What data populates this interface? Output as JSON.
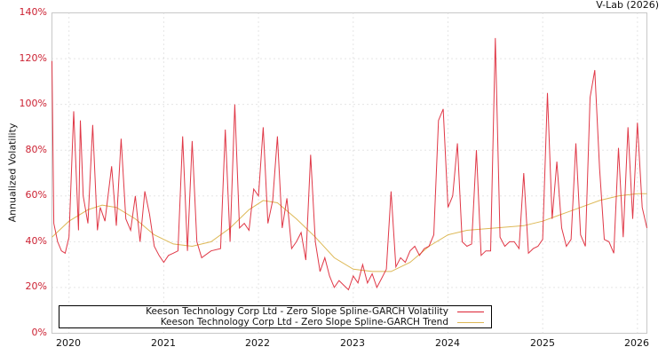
{
  "credit": "V-Lab (2026)",
  "chart_data": {
    "type": "line",
    "title": "",
    "xlabel": "",
    "ylabel": "Annualized Volatility",
    "ylim": [
      0,
      140
    ],
    "y_ticks": [
      "0%",
      "20%",
      "40%",
      "60%",
      "80%",
      "100%",
      "120%",
      "140%"
    ],
    "x_ticks": [
      "2020",
      "2021",
      "2022",
      "2023",
      "2024",
      "2025",
      "2026"
    ],
    "xlim": [
      2019.82,
      2026.1
    ],
    "grid": true,
    "legend_position": "lower-left-inside",
    "series": [
      {
        "name": "Keeson Technology Corp Ltd - Zero Slope Spline-GARCH Volatility",
        "color": "#dd2233",
        "x": [
          2019.82,
          2019.84,
          2019.88,
          2019.92,
          2019.96,
          2020.0,
          2020.05,
          2020.1,
          2020.12,
          2020.15,
          2020.2,
          2020.25,
          2020.3,
          2020.33,
          2020.38,
          2020.45,
          2020.5,
          2020.55,
          2020.6,
          2020.65,
          2020.7,
          2020.75,
          2020.8,
          2020.85,
          2020.9,
          2020.95,
          2021.0,
          2021.05,
          2021.1,
          2021.15,
          2021.2,
          2021.25,
          2021.3,
          2021.35,
          2021.4,
          2021.5,
          2021.6,
          2021.65,
          2021.7,
          2021.75,
          2021.8,
          2021.85,
          2021.9,
          2021.95,
          2022.0,
          2022.05,
          2022.1,
          2022.15,
          2022.2,
          2022.25,
          2022.3,
          2022.35,
          2022.4,
          2022.45,
          2022.5,
          2022.55,
          2022.6,
          2022.65,
          2022.7,
          2022.75,
          2022.8,
          2022.85,
          2022.9,
          2022.95,
          2023.0,
          2023.05,
          2023.1,
          2023.15,
          2023.2,
          2023.25,
          2023.3,
          2023.35,
          2023.4,
          2023.45,
          2023.5,
          2023.55,
          2023.6,
          2023.65,
          2023.7,
          2023.75,
          2023.8,
          2023.85,
          2023.9,
          2023.95,
          2024.0,
          2024.05,
          2024.1,
          2024.15,
          2024.2,
          2024.25,
          2024.3,
          2024.35,
          2024.4,
          2024.45,
          2024.5,
          2024.55,
          2024.6,
          2024.65,
          2024.7,
          2024.75,
          2024.8,
          2024.85,
          2024.9,
          2024.95,
          2025.0,
          2025.05,
          2025.1,
          2025.15,
          2025.2,
          2025.25,
          2025.3,
          2025.35,
          2025.4,
          2025.45,
          2025.5,
          2025.55,
          2025.6,
          2025.65,
          2025.7,
          2025.75,
          2025.8,
          2025.85,
          2025.9,
          2025.95,
          2026.0,
          2026.05,
          2026.1
        ],
        "values": [
          119,
          48,
          40,
          36,
          35,
          42,
          97,
          45,
          93,
          60,
          48,
          91,
          45,
          55,
          49,
          73,
          47,
          85,
          50,
          45,
          60,
          40,
          62,
          52,
          38,
          34,
          31,
          34,
          35,
          36,
          86,
          36,
          84,
          40,
          33,
          36,
          37,
          89,
          40,
          100,
          46,
          48,
          45,
          63,
          60,
          90,
          48,
          58,
          86,
          46,
          59,
          37,
          40,
          44,
          32,
          78,
          40,
          27,
          33,
          25,
          20,
          23,
          21,
          19,
          25,
          22,
          30,
          22,
          26,
          20,
          24,
          28,
          62,
          29,
          33,
          31,
          36,
          38,
          34,
          37,
          38,
          43,
          93,
          98,
          55,
          60,
          83,
          40,
          38,
          39,
          80,
          34,
          36,
          36,
          129,
          42,
          38,
          40,
          40,
          37,
          70,
          35,
          37,
          38,
          41,
          105,
          50,
          75,
          46,
          38,
          41,
          83,
          43,
          38,
          103,
          115,
          72,
          41,
          40,
          35,
          81,
          42,
          90,
          50,
          92,
          55,
          46
        ]
      },
      {
        "name": "Keeson Technology Corp Ltd - Zero Slope Spline-GARCH Trend",
        "color": "#ddb855",
        "x": [
          2019.82,
          2020.0,
          2020.2,
          2020.35,
          2020.5,
          2020.7,
          2020.9,
          2021.1,
          2021.3,
          2021.5,
          2021.7,
          2021.9,
          2022.05,
          2022.2,
          2022.4,
          2022.6,
          2022.8,
          2023.0,
          2023.2,
          2023.4,
          2023.6,
          2023.8,
          2024.0,
          2024.2,
          2024.5,
          2024.8,
          2025.0,
          2025.2,
          2025.4,
          2025.6,
          2025.8,
          2026.0,
          2026.1
        ],
        "values": [
          42,
          49,
          54,
          56,
          55,
          50,
          43,
          39,
          38,
          40,
          46,
          54,
          58,
          57,
          50,
          42,
          33,
          28,
          27,
          27,
          31,
          38,
          43,
          45,
          46,
          47,
          49,
          52,
          55,
          58,
          60,
          61,
          61
        ]
      }
    ]
  },
  "legend": {
    "items": [
      {
        "label": "Keeson Technology Corp Ltd - Zero Slope Spline-GARCH Volatility",
        "color": "#dd2233"
      },
      {
        "label": "Keeson Technology Corp Ltd - Zero Slope Spline-GARCH Trend",
        "color": "#ddb855"
      }
    ]
  }
}
